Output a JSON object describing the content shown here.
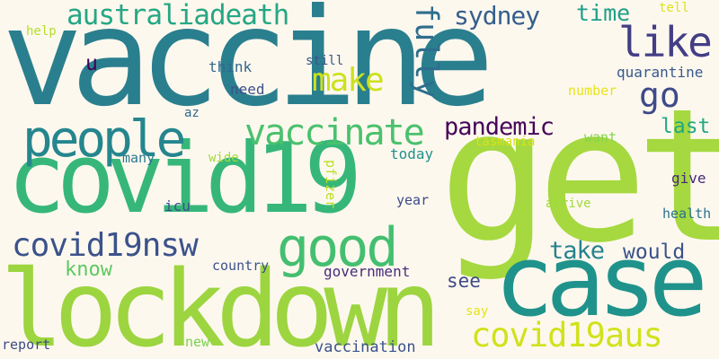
{
  "words": [
    {
      "text": "vaccine",
      "color": "#2a7f8e"
    },
    {
      "text": "get",
      "color": "#a5d93f"
    },
    {
      "text": "covid19",
      "color": "#36b779"
    },
    {
      "text": "lockdown",
      "color": "#9cd540"
    },
    {
      "text": "case",
      "color": "#1f938b"
    },
    {
      "text": "people",
      "color": "#25868e"
    },
    {
      "text": "vaccinate",
      "color": "#4ac16d"
    },
    {
      "text": "good",
      "color": "#44bf70"
    },
    {
      "text": "covid19nsw",
      "color": "#3b528b"
    },
    {
      "text": "covid19aus",
      "color": "#d1e21b"
    },
    {
      "text": "australiadeath",
      "color": "#26a784"
    },
    {
      "text": "fully",
      "color": "#2e6e8e"
    },
    {
      "text": "like",
      "color": "#433e85"
    },
    {
      "text": "sydney",
      "color": "#355f8d"
    },
    {
      "text": "make",
      "color": "#cde11d"
    },
    {
      "text": "go",
      "color": "#3e4a89"
    },
    {
      "text": "pandemic",
      "color": "#46075a"
    },
    {
      "text": "time",
      "color": "#1f9e89"
    },
    {
      "text": "take",
      "color": "#25838e"
    },
    {
      "text": "would",
      "color": "#3b528b"
    },
    {
      "text": "last",
      "color": "#22a884"
    },
    {
      "text": "know",
      "color": "#5ec962"
    },
    {
      "text": "see",
      "color": "#3e4a89"
    },
    {
      "text": "u",
      "color": "#440154"
    },
    {
      "text": "quarantine",
      "color": "#38598c"
    },
    {
      "text": "number",
      "color": "#e5e419"
    },
    {
      "text": "think",
      "color": "#31688e"
    },
    {
      "text": "need",
      "color": "#3b528b"
    },
    {
      "text": "still",
      "color": "#3b528b"
    },
    {
      "text": "tell",
      "color": "#dde318"
    },
    {
      "text": "help",
      "color": "#b5de2b"
    },
    {
      "text": "az",
      "color": "#31688e"
    },
    {
      "text": "tasmania",
      "color": "#d8e219"
    },
    {
      "text": "want",
      "color": "#84d44b"
    },
    {
      "text": "many",
      "color": "#2a788e"
    },
    {
      "text": "wide",
      "color": "#a2da37"
    },
    {
      "text": "today",
      "color": "#21918c"
    },
    {
      "text": "pfizer",
      "color": "#bddf26"
    },
    {
      "text": "icu",
      "color": "#3b528b"
    },
    {
      "text": "year",
      "color": "#3e4a89"
    },
    {
      "text": "give",
      "color": "#482878"
    },
    {
      "text": "arrive",
      "color": "#9fda3a"
    },
    {
      "text": "health",
      "color": "#2c728e"
    },
    {
      "text": "country",
      "color": "#3b528b"
    },
    {
      "text": "government",
      "color": "#472d7b"
    },
    {
      "text": "say",
      "color": "#e2e418"
    },
    {
      "text": "report",
      "color": "#3f4889"
    },
    {
      "text": "new",
      "color": "#7ad151"
    },
    {
      "text": "vaccination",
      "color": "#3b528b"
    }
  ]
}
